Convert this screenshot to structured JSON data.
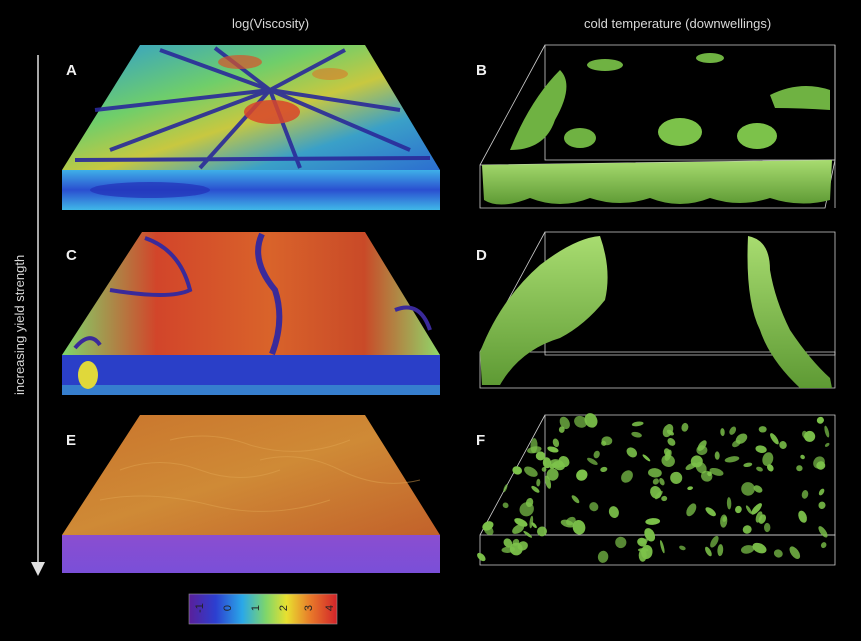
{
  "columns": {
    "left_title": "log(Viscosity)",
    "right_title": "cold temperature (downwellings)"
  },
  "axis_label": "increasing yield strength",
  "panels": [
    {
      "id": "A",
      "field": "viscosity"
    },
    {
      "id": "B",
      "field": "temperature"
    },
    {
      "id": "C",
      "field": "viscosity"
    },
    {
      "id": "D",
      "field": "temperature"
    },
    {
      "id": "E",
      "field": "viscosity"
    },
    {
      "id": "F",
      "field": "temperature"
    }
  ],
  "colorbar": {
    "ticks": [
      "-1",
      "0",
      "1",
      "2",
      "3",
      "4"
    ],
    "colors": [
      "#5a1f9a",
      "#2c3fd0",
      "#2aa8e8",
      "#7fd66a",
      "#e8e030",
      "#e87a2a",
      "#d2232a"
    ]
  },
  "colors": {
    "background": "#000000",
    "downwelling_green": "#7cc24a",
    "box_outline": "#cfcfcf"
  }
}
